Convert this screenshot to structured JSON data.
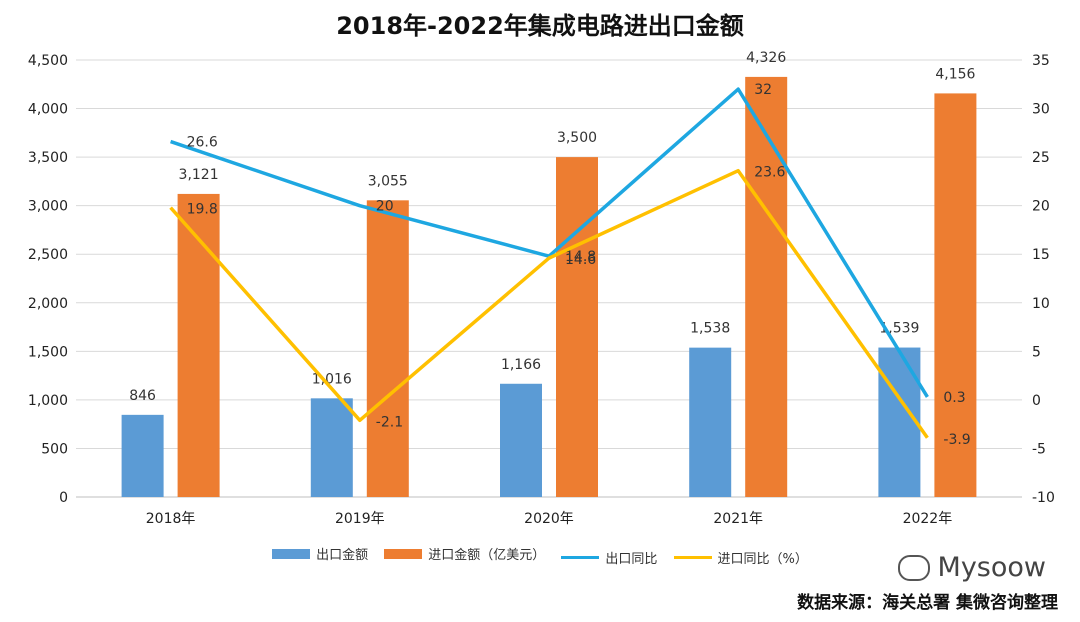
{
  "chart_data": {
    "type": "bar",
    "title": "2018年-2022年集成电路进出口金额",
    "categories": [
      "2018年",
      "2019年",
      "2020年",
      "2021年",
      "2022年"
    ],
    "series": [
      {
        "name": "出口金额",
        "type": "bar",
        "axis": "left",
        "color": "#5B9BD5",
        "values": [
          846,
          1016,
          1166,
          1538,
          1539
        ],
        "labels": [
          "846",
          "1,016",
          "1,166",
          "1,538",
          "1,539"
        ]
      },
      {
        "name": "进口金额（亿美元）",
        "type": "bar",
        "axis": "left",
        "color": "#ED7D31",
        "values": [
          3121,
          3055,
          3500,
          4326,
          4156
        ],
        "labels": [
          "3,121",
          "3,055",
          "3,500",
          "4,326",
          "4,156"
        ]
      },
      {
        "name": "出口同比",
        "type": "line",
        "axis": "right",
        "color": "#1EA7E1",
        "values": [
          26.6,
          20,
          14.8,
          32,
          0.3
        ],
        "labels": [
          "26.6",
          "20",
          "14.8",
          "32",
          "0.3"
        ]
      },
      {
        "name": "进口同比（%）",
        "type": "line",
        "axis": "right",
        "color": "#FFC000",
        "values": [
          19.8,
          -2.1,
          14.6,
          23.6,
          -3.9
        ],
        "labels": [
          "19.8",
          "-2.1",
          "14.6",
          "23.6",
          "-3.9"
        ]
      }
    ],
    "y_left": {
      "range": [
        0,
        4500
      ],
      "ticks": [
        "0",
        "500",
        "1,000",
        "1,500",
        "2,000",
        "2,500",
        "3,000",
        "3,500",
        "4,000",
        "4,500"
      ]
    },
    "y_right": {
      "range": [
        -10,
        35
      ],
      "ticks": [
        "-10",
        "-5",
        "0",
        "5",
        "10",
        "15",
        "20",
        "25",
        "30",
        "35"
      ]
    },
    "grid": true,
    "legend": "bottom"
  },
  "footer": {
    "watermark": "Mysoow",
    "source": "数据来源：海关总署   集微咨询整理"
  }
}
